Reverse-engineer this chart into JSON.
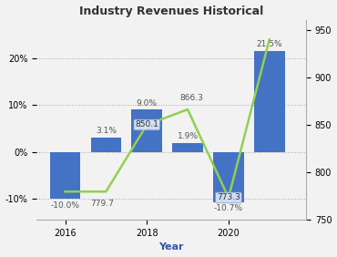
{
  "years": [
    2016,
    2017,
    2018,
    2019,
    2020,
    2021
  ],
  "bar_values": [
    -10.0,
    3.1,
    9.0,
    1.9,
    -10.7,
    21.5
  ],
  "line_values": [
    779.7,
    779.7,
    850.1,
    866.3,
    773.3,
    940.0
  ],
  "bar_labels_pct": [
    "-10.0%",
    "3.1%",
    "9.0%",
    "1.9%",
    "-10.7%",
    "21.5%"
  ],
  "val_label_indices": [
    1,
    2,
    3,
    4
  ],
  "val_labels": [
    "779.7",
    "850.1",
    "866.3",
    "773.3"
  ],
  "val_label_boxed": [
    false,
    true,
    false,
    true
  ],
  "bar_color": "#4472C4",
  "line_color": "#92D050",
  "title": "Industry Revenues Historical",
  "xlabel": "Year",
  "ylim_left": [
    -14.5,
    28.0
  ],
  "ylim_right": [
    750,
    960
  ],
  "yticks_left": [
    -10,
    0,
    10,
    20
  ],
  "yticks_right": [
    750,
    800,
    850,
    900,
    950
  ],
  "bg_color": "#f2f2f2",
  "title_fontsize": 9,
  "tick_fontsize": 7,
  "label_fontsize": 6.5,
  "xlabel_fontsize": 8
}
